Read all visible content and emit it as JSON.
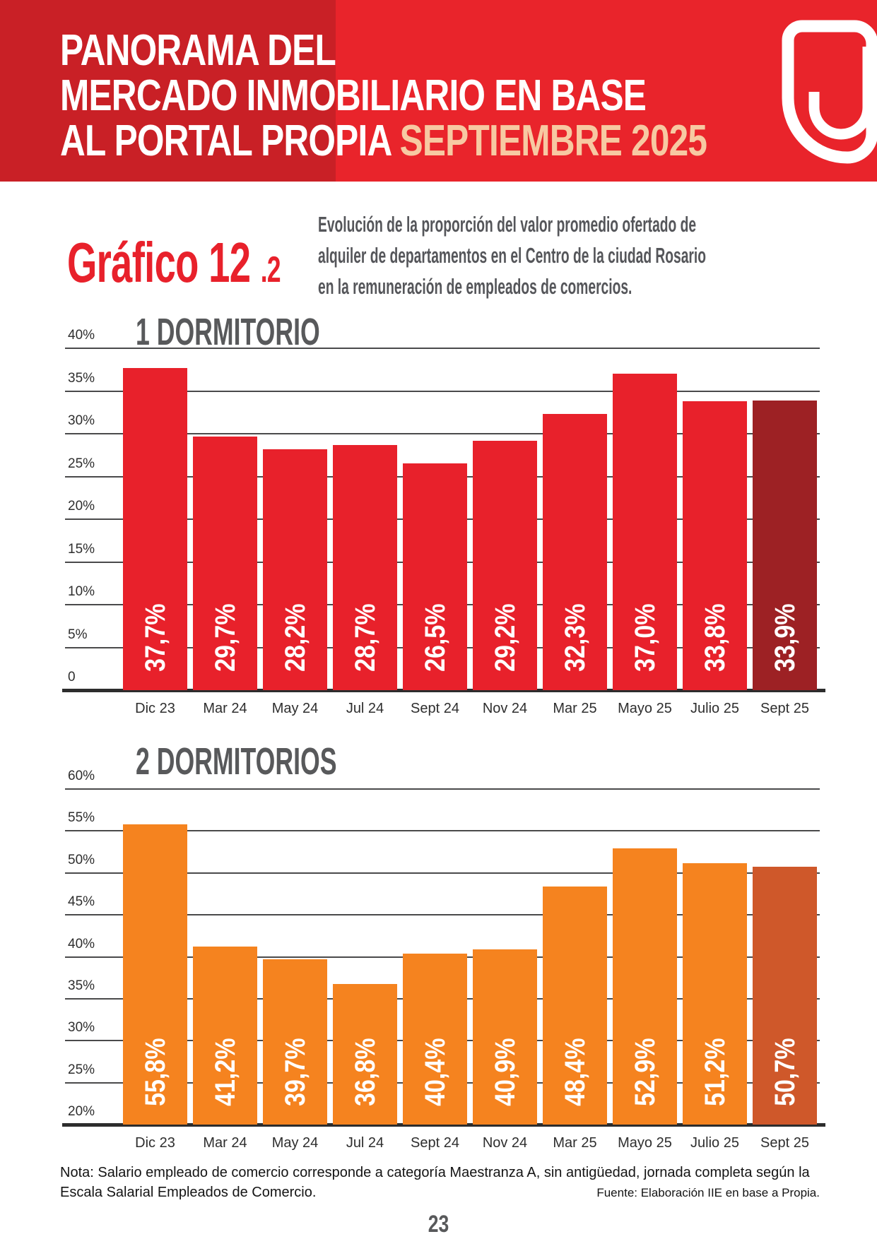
{
  "header": {
    "line1": "PANORAMA DEL",
    "line2": "MERCADO INMOBILIARIO EN BASE",
    "line3_prefix": "AL PORTAL PROPIA ",
    "line3_highlight": "SEPTIEMBRE 2025",
    "bg_left": "#C92026",
    "bg_right": "#E9242B",
    "highlight_color": "#F7C9A2",
    "logo_icon": "propia-logo"
  },
  "figure": {
    "label_main": "Gráfico 12",
    "label_suffix": ".2",
    "label_color": "#E8212B",
    "description_line1": "Evolución de la proporción del valor promedio ofertado de",
    "description_line2": "alquiler de departamentos en el Centro de la ciudad Rosario",
    "description_line3": "en la remuneración de empleados de comercios."
  },
  "chart_data": [
    {
      "type": "bar",
      "title": "1 DORMITORIO",
      "categories": [
        "Dic 23",
        "Mar 24",
        "May 24",
        "Jul 24",
        "Sept 24",
        "Nov 24",
        "Mar 25",
        "Mayo 25",
        "Julio 25",
        "Sept 25"
      ],
      "values": [
        37.7,
        29.7,
        28.2,
        28.7,
        26.5,
        29.2,
        32.3,
        37.0,
        33.8,
        33.9
      ],
      "value_labels": [
        "37,7%",
        "29,7%",
        "28,2%",
        "28,7%",
        "26,5%",
        "29,2%",
        "32,3%",
        "37,0%",
        "33,8%",
        "33,9%"
      ],
      "ylim": [
        0,
        40
      ],
      "ticks": [
        {
          "value": 40,
          "label": "40%"
        },
        {
          "value": 35,
          "label": "35%"
        },
        {
          "value": 30,
          "label": "30%"
        },
        {
          "value": 25,
          "label": "25%"
        },
        {
          "value": 20,
          "label": "20%"
        },
        {
          "value": 15,
          "label": "15%"
        },
        {
          "value": 10,
          "label": "10%"
        },
        {
          "value": 5,
          "label": "5%"
        },
        {
          "value": 0,
          "label": "0"
        }
      ],
      "bar_color": "#E8212B",
      "last_bar_color": "#9D2124",
      "grid": true,
      "legend": false,
      "xlabel": "",
      "ylabel": ""
    },
    {
      "type": "bar",
      "title": "2 DORMITORIOS",
      "categories": [
        "Dic 23",
        "Mar 24",
        "May 24",
        "Jul 24",
        "Sept 24",
        "Nov 24",
        "Mar 25",
        "Mayo 25",
        "Julio 25",
        "Sept 25"
      ],
      "values": [
        55.8,
        41.2,
        39.7,
        36.8,
        40.4,
        40.9,
        48.4,
        52.9,
        51.2,
        50.7
      ],
      "value_labels": [
        "55,8%",
        "41,2%",
        "39,7%",
        "36,8%",
        "40,4%",
        "40,9%",
        "48,4%",
        "52,9%",
        "51,2%",
        "50,7%"
      ],
      "ylim": [
        20,
        60
      ],
      "ticks": [
        {
          "value": 60,
          "label": "60%"
        },
        {
          "value": 55,
          "label": "55%"
        },
        {
          "value": 50,
          "label": "50%"
        },
        {
          "value": 45,
          "label": "45%"
        },
        {
          "value": 40,
          "label": "40%"
        },
        {
          "value": 35,
          "label": "35%"
        },
        {
          "value": 30,
          "label": "30%"
        },
        {
          "value": 25,
          "label": "25%"
        },
        {
          "value": 20,
          "label": "20%"
        }
      ],
      "bar_color": "#F5831F",
      "last_bar_color": "#CF582A",
      "grid": true,
      "legend": false,
      "xlabel": "",
      "ylabel": ""
    }
  ],
  "footer": {
    "note_line1": "Nota: Salario empleado de comercio corresponde a categoría Maestranza A, sin antigüedad, jornada completa según la",
    "note_line2": "Escala Salarial Empleados de Comercio.",
    "source": "Fuente: Elaboración IIE en base a Propia.",
    "page_number": "23"
  }
}
